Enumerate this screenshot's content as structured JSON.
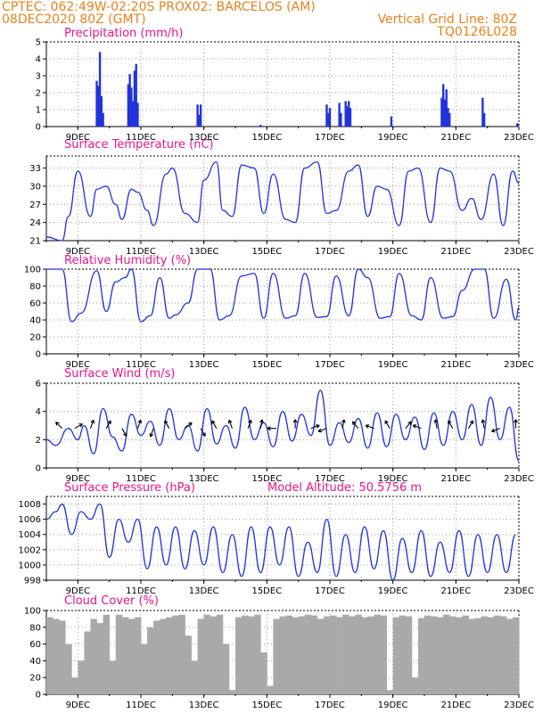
{
  "header": {
    "line1_left": "CPTEC:  062:49W-02:20S  PROX02: BARCELOS (AM)",
    "line2_left": "08DEC2020 80Z (GMT)",
    "line2_right": "Vertical Grid Line: 80Z",
    "line3_right": "TQ0126L028"
  },
  "colors": {
    "header": "#e8821e",
    "title": "#e6168c",
    "series": "#2233dd",
    "cloud": "#a9a9a9",
    "grid": "#999999"
  },
  "x_axis": {
    "labels": [
      "9DEC",
      "11DEC",
      "13DEC",
      "15DEC",
      "17DEC",
      "19DEC",
      "21DEC",
      "23DEC"
    ],
    "range_days": [
      8.0,
      23.0
    ]
  },
  "chart_data": [
    {
      "id": "precip",
      "type": "bar",
      "title": "Precipitation (mm/h)",
      "ylim": [
        0,
        5
      ],
      "yticks": [
        0,
        1,
        2,
        3,
        4,
        5
      ],
      "x": [
        9.6,
        9.65,
        9.7,
        9.75,
        9.8,
        10.6,
        10.65,
        10.7,
        10.75,
        10.8,
        10.85,
        10.9,
        12.8,
        12.85,
        12.9,
        14.8,
        16.9,
        16.95,
        17.0,
        17.3,
        17.35,
        17.5,
        17.55,
        17.6,
        17.65,
        18.95,
        20.55,
        20.6,
        20.65,
        20.7,
        20.75,
        20.8,
        21.85,
        21.9,
        22.95
      ],
      "values": [
        2.7,
        2.4,
        4.4,
        1.8,
        0.8,
        2.5,
        3.1,
        2.3,
        1.5,
        3.3,
        3.7,
        1.4,
        1.3,
        0.7,
        1.3,
        0.1,
        1.3,
        0.8,
        1.1,
        1.4,
        0.8,
        1.5,
        1.2,
        1.5,
        1.1,
        0.6,
        1.7,
        2.5,
        1.6,
        2.2,
        1.1,
        0.8,
        1.7,
        0.8,
        0.2
      ]
    },
    {
      "id": "temp",
      "type": "line",
      "title": "Surface Temperature (nC)",
      "ylim": [
        21,
        35
      ],
      "yticks": [
        21,
        24,
        27,
        30,
        33
      ],
      "x": [
        8.0,
        8.5,
        8.7,
        9.0,
        9.4,
        9.6,
        9.9,
        10.2,
        10.4,
        10.7,
        10.9,
        11.2,
        11.4,
        11.8,
        12.0,
        12.4,
        12.8,
        13.0,
        13.4,
        13.6,
        13.9,
        14.2,
        14.6,
        14.9,
        15.2,
        15.6,
        15.9,
        16.2,
        16.6,
        16.9,
        17.2,
        17.6,
        17.9,
        18.2,
        18.5,
        18.8,
        19.2,
        19.5,
        19.8,
        20.2,
        20.5,
        20.8,
        21.2,
        21.5,
        21.8,
        22.2,
        22.5,
        22.8,
        23.0
      ],
      "values": [
        21.6,
        21.0,
        25.0,
        32.5,
        25.0,
        29.5,
        30.0,
        27.0,
        24.5,
        29.5,
        29.0,
        26.0,
        23.5,
        32.0,
        33.0,
        25.5,
        24.0,
        31.0,
        34.0,
        26.0,
        25.0,
        33.5,
        33.0,
        25.5,
        32.0,
        24.5,
        24.0,
        33.0,
        34.0,
        25.5,
        26.0,
        32.5,
        33.5,
        25.0,
        30.0,
        29.5,
        23.5,
        32.5,
        33.0,
        24.0,
        33.0,
        32.5,
        26.0,
        28.0,
        24.5,
        32.0,
        23.5,
        32.5,
        30.5
      ]
    },
    {
      "id": "rh",
      "type": "line",
      "title": "Relative Humidity (%)",
      "ylim": [
        0,
        100
      ],
      "yticks": [
        0,
        20,
        40,
        60,
        80,
        100
      ],
      "x": [
        8.0,
        8.5,
        8.8,
        9.1,
        9.6,
        9.9,
        10.2,
        10.5,
        10.7,
        11.0,
        11.3,
        11.6,
        11.9,
        12.1,
        12.5,
        12.8,
        13.2,
        13.5,
        13.8,
        14.2,
        14.6,
        14.9,
        15.2,
        15.6,
        15.9,
        16.2,
        16.6,
        16.9,
        17.2,
        17.6,
        17.9,
        18.2,
        18.6,
        18.9,
        19.2,
        19.6,
        19.9,
        20.2,
        20.6,
        20.9,
        21.2,
        21.6,
        21.9,
        22.2,
        22.6,
        22.9,
        23.0
      ],
      "values": [
        100,
        100,
        38,
        48,
        98,
        50,
        85,
        90,
        100,
        38,
        45,
        90,
        42,
        46,
        60,
        100,
        100,
        40,
        45,
        92,
        95,
        42,
        95,
        42,
        45,
        95,
        43,
        44,
        92,
        45,
        100,
        90,
        42,
        44,
        95,
        45,
        40,
        90,
        42,
        44,
        75,
        100,
        100,
        42,
        88,
        40,
        55
      ]
    },
    {
      "id": "wind",
      "type": "line",
      "title": "Surface Wind (m/s)",
      "ylim": [
        0,
        6
      ],
      "yticks": [
        0,
        2,
        4,
        6
      ],
      "x": [
        8.0,
        8.3,
        8.7,
        9.0,
        9.2,
        9.5,
        9.8,
        10.1,
        10.4,
        10.7,
        11.0,
        11.3,
        11.6,
        11.9,
        12.2,
        12.5,
        12.8,
        13.1,
        13.4,
        13.7,
        14.0,
        14.3,
        14.6,
        14.9,
        15.2,
        15.5,
        15.8,
        16.1,
        16.4,
        16.7,
        17.0,
        17.3,
        17.6,
        17.9,
        18.2,
        18.5,
        18.8,
        19.1,
        19.4,
        19.7,
        20.0,
        20.3,
        20.6,
        20.9,
        21.2,
        21.5,
        21.8,
        22.1,
        22.4,
        22.7,
        23.0
      ],
      "values": [
        2.0,
        1.6,
        2.8,
        2.0,
        3.0,
        1.0,
        4.2,
        2.2,
        1.2,
        3.8,
        2.3,
        3.3,
        1.6,
        4.2,
        2.0,
        3.0,
        1.2,
        4.2,
        1.7,
        3.0,
        1.4,
        4.3,
        2.0,
        3.2,
        1.5,
        4.0,
        1.9,
        3.8,
        2.3,
        5.5,
        1.6,
        3.2,
        1.8,
        3.5,
        1.4,
        3.9,
        1.5,
        3.8,
        2.0,
        3.6,
        1.3,
        3.9,
        1.6,
        4.0,
        2.0,
        4.5,
        1.6,
        5.0,
        2.0,
        4.3,
        0.5
      ],
      "arrows": [
        {
          "day": 8.5,
          "dir": 135
        },
        {
          "day": 8.9,
          "dir": 30
        },
        {
          "day": 9.4,
          "dir": 70
        },
        {
          "day": 9.9,
          "dir": 60
        },
        {
          "day": 10.4,
          "dir": 300
        },
        {
          "day": 10.9,
          "dir": 70
        },
        {
          "day": 11.4,
          "dir": 250
        },
        {
          "day": 11.9,
          "dir": 120
        },
        {
          "day": 12.4,
          "dir": 40
        },
        {
          "day": 12.9,
          "dir": 300
        },
        {
          "day": 13.4,
          "dir": 120
        },
        {
          "day": 13.9,
          "dir": 110
        },
        {
          "day": 14.4,
          "dir": 70
        },
        {
          "day": 14.8,
          "dir": 80
        },
        {
          "day": 15.3,
          "dir": 180
        },
        {
          "day": 15.9,
          "dir": 90
        },
        {
          "day": 16.4,
          "dir": 20
        },
        {
          "day": 16.9,
          "dir": 200
        },
        {
          "day": 17.4,
          "dir": 80
        },
        {
          "day": 17.9,
          "dir": 130
        },
        {
          "day": 18.4,
          "dir": 160
        },
        {
          "day": 18.9,
          "dir": 120
        },
        {
          "day": 19.4,
          "dir": 50
        },
        {
          "day": 19.9,
          "dir": 160
        },
        {
          "day": 20.4,
          "dir": 100
        },
        {
          "day": 20.9,
          "dir": 120
        },
        {
          "day": 21.4,
          "dir": 60
        },
        {
          "day": 21.9,
          "dir": 100
        },
        {
          "day": 22.4,
          "dir": 200
        },
        {
          "day": 22.9,
          "dir": 90
        }
      ]
    },
    {
      "id": "pressure",
      "type": "line",
      "title": "Surface Pressure (hPa)",
      "annotation": "Model Altitude: 50.5756 m",
      "ylim": [
        998,
        1009
      ],
      "yticks": [
        998,
        1000,
        1002,
        1004,
        1006,
        1008
      ],
      "x": [
        8.0,
        8.3,
        8.5,
        8.8,
        9.1,
        9.4,
        9.7,
        10.0,
        10.3,
        10.6,
        10.9,
        11.2,
        11.5,
        11.8,
        12.1,
        12.4,
        12.7,
        13.0,
        13.3,
        13.6,
        13.9,
        14.2,
        14.5,
        14.8,
        15.1,
        15.4,
        15.7,
        16.0,
        16.3,
        16.6,
        16.9,
        17.2,
        17.5,
        17.8,
        18.1,
        18.4,
        18.7,
        19.0,
        19.3,
        19.6,
        19.9,
        20.2,
        20.5,
        20.8,
        21.1,
        21.4,
        21.7,
        22.0,
        22.3,
        22.6,
        22.9
      ],
      "values": [
        1006,
        1007,
        1008,
        1004,
        1007,
        1006,
        1008,
        1001,
        1006,
        1003,
        1006,
        999.5,
        1005,
        1000,
        1005,
        999.5,
        1004.5,
        1000,
        1005,
        999,
        1004,
        998.5,
        1005,
        999,
        1005,
        1000,
        1005,
        998.5,
        1003,
        999,
        1006,
        998.5,
        1004,
        999,
        1005,
        999.5,
        1004.5,
        998,
        1003.5,
        999,
        1004.5,
        998.5,
        1003,
        999,
        1004.5,
        998.5,
        1004,
        999,
        1004,
        999,
        1004
      ]
    },
    {
      "id": "cloud",
      "type": "bar",
      "title": "Cloud Cover (%)",
      "ylim": [
        0,
        100
      ],
      "yticks": [
        0,
        20,
        40,
        60,
        80,
        100
      ],
      "x": [
        8.0,
        8.2,
        8.4,
        8.6,
        8.8,
        9.0,
        9.2,
        9.4,
        9.6,
        9.8,
        10.0,
        10.2,
        10.4,
        10.6,
        10.8,
        11.0,
        11.2,
        11.4,
        11.6,
        11.8,
        12.0,
        12.2,
        12.4,
        12.6,
        12.8,
        13.0,
        13.2,
        13.4,
        13.6,
        13.8,
        14.0,
        14.2,
        14.4,
        14.6,
        14.8,
        15.0,
        15.2,
        15.4,
        15.6,
        15.8,
        16.0,
        16.2,
        16.4,
        16.6,
        16.8,
        17.0,
        17.2,
        17.4,
        17.6,
        17.8,
        18.0,
        18.2,
        18.4,
        18.6,
        18.8,
        19.0,
        19.2,
        19.4,
        19.6,
        19.8,
        20.0,
        20.2,
        20.4,
        20.6,
        20.8,
        21.0,
        21.2,
        21.4,
        21.6,
        21.8,
        22.0,
        22.2,
        22.4,
        22.6,
        22.8
      ],
      "values": [
        92,
        90,
        88,
        60,
        20,
        40,
        75,
        90,
        85,
        95,
        40,
        95,
        92,
        90,
        92,
        60,
        80,
        88,
        90,
        92,
        94,
        95,
        70,
        40,
        90,
        95,
        93,
        95,
        60,
        5,
        92,
        94,
        93,
        95,
        50,
        10,
        90,
        93,
        94,
        92,
        93,
        95,
        94,
        90,
        93,
        94,
        92,
        95,
        93,
        95,
        92,
        93,
        95,
        94,
        5,
        92,
        94,
        93,
        20,
        91,
        94,
        93,
        92,
        95,
        93,
        92,
        94,
        90,
        91,
        93,
        92,
        94,
        93,
        90,
        92
      ]
    }
  ]
}
